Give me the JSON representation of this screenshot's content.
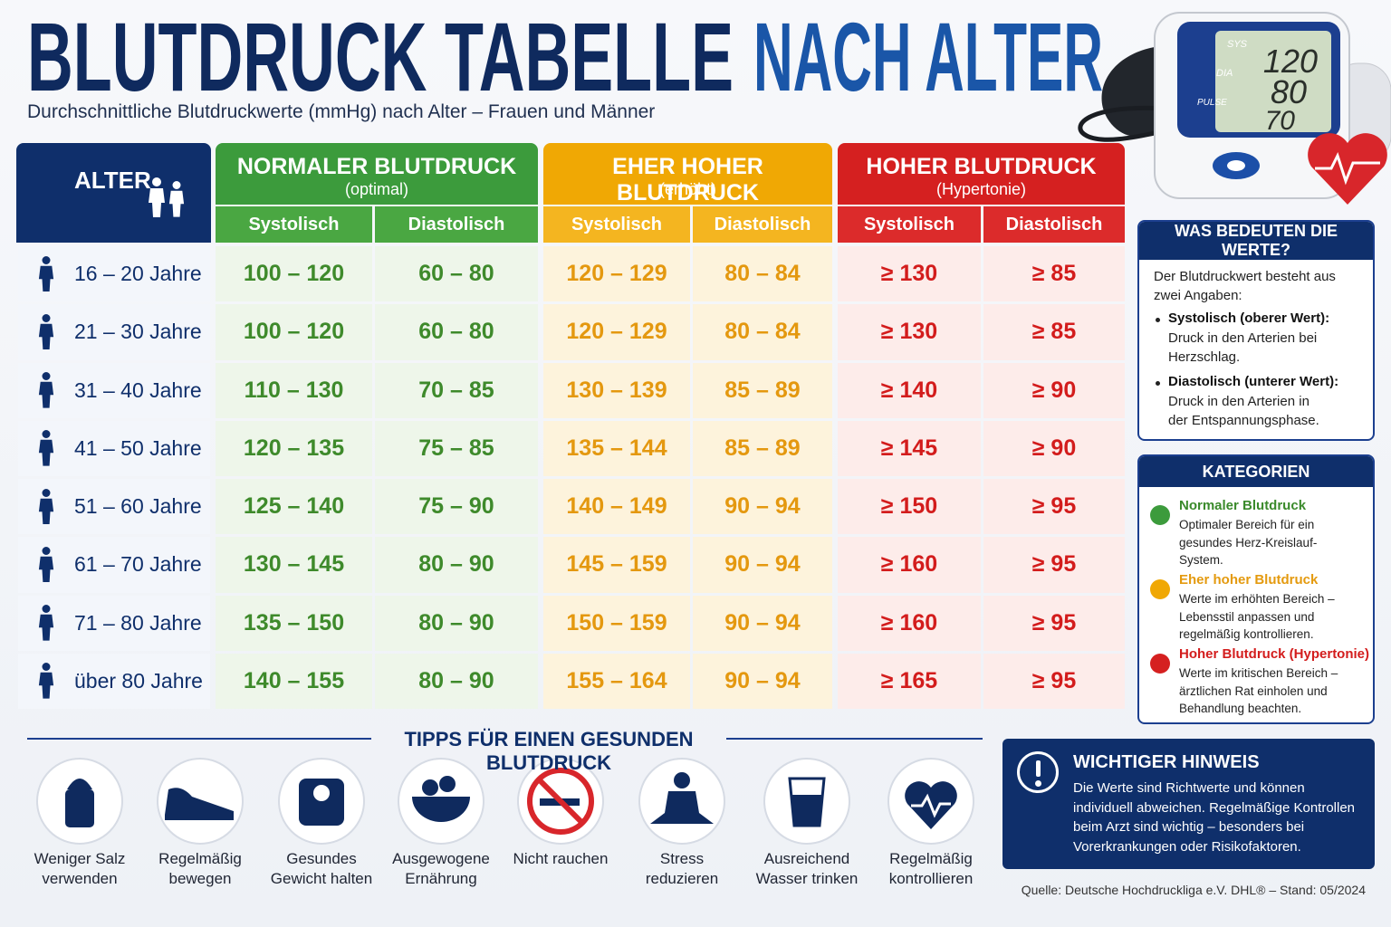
{
  "header": {
    "title": "BLUTDRUCK TABELLE",
    "title_accent": "NACH ALTER",
    "subtitle": "Durchschnittliche Blutdruckwerte (mmHg) nach Alter – Frauen und Männer"
  },
  "device": {
    "labels": [
      "SYS",
      "DIA",
      "PULSE"
    ],
    "readings": [
      "120",
      "80",
      "70"
    ]
  },
  "table": {
    "age_header": "ALTER",
    "groups": [
      {
        "title": "NORMALER BLUTDRUCK",
        "subtitle": "(optimal)",
        "columns": [
          "Systolisch",
          "Diastolisch"
        ]
      },
      {
        "title": "EHER HOHER BLUTDRUCK",
        "subtitle": "(erhöht)",
        "columns": [
          "Systolisch",
          "Diastolisch"
        ]
      },
      {
        "title": "HOHER BLUTDRUCK",
        "subtitle": "(Hypertonie)",
        "columns": [
          "Systolisch",
          "Diastolisch"
        ]
      }
    ],
    "rows": [
      {
        "age": "16 – 20 Jahre",
        "cells": [
          "100 – 120",
          "60 – 80",
          "120 – 129",
          "80 – 84",
          "≥ 130",
          "≥ 85"
        ]
      },
      {
        "age": "21 – 30 Jahre",
        "cells": [
          "100 – 120",
          "60 – 80",
          "120 – 129",
          "80 – 84",
          "≥ 130",
          "≥ 85"
        ]
      },
      {
        "age": "31 – 40 Jahre",
        "cells": [
          "110 – 130",
          "70 – 85",
          "130 – 139",
          "85 – 89",
          "≥ 140",
          "≥ 90"
        ]
      },
      {
        "age": "41 – 50 Jahre",
        "cells": [
          "120 – 135",
          "75 – 85",
          "135 – 144",
          "85 – 89",
          "≥ 145",
          "≥ 90"
        ]
      },
      {
        "age": "51 – 60 Jahre",
        "cells": [
          "125 – 140",
          "75 – 90",
          "140 – 149",
          "90 – 94",
          "≥ 150",
          "≥ 95"
        ]
      },
      {
        "age": "61 – 70 Jahre",
        "cells": [
          "130 – 145",
          "80 – 90",
          "145 – 159",
          "90 – 94",
          "≥ 160",
          "≥ 95"
        ]
      },
      {
        "age": "71 – 80 Jahre",
        "cells": [
          "135 – 150",
          "80 – 90",
          "150 – 159",
          "90 – 94",
          "≥ 160",
          "≥ 95"
        ]
      },
      {
        "age": "über 80 Jahre",
        "cells": [
          "140 – 155",
          "80 – 90",
          "155 – 164",
          "90 – 94",
          "≥ 165",
          "≥ 95"
        ]
      }
    ]
  },
  "info": {
    "title": "WAS BEDEUTEN DIE WERTE?",
    "intro": "Der Blutdruckwert besteht aus zwei Angaben:",
    "items": [
      {
        "term": "Systolisch (oberer Wert):",
        "text": "Druck in den Arterien bei Herzschlag."
      },
      {
        "term": "Diastolisch (unterer Wert):",
        "text": "Druck in den Arterien in der Entspannungsphase."
      }
    ]
  },
  "categories": {
    "title": "KATEGORIEN",
    "items": [
      {
        "name": "Normaler Blutdruck",
        "text": "Optimaler Bereich für ein gesundes Herz-Kreislauf-System."
      },
      {
        "name": "Eher hoher Blutdruck",
        "text": "Werte im erhöhten Bereich – Lebensstil anpassen und regelmäßig kontrollieren."
      },
      {
        "name": "Hoher Blutdruck (Hypertonie)",
        "text": "Werte im kritischen Bereich – ärztlichen Rat einholen und Behandlung beachten."
      }
    ]
  },
  "tips": {
    "title": "TIPPS FÜR EINEN GESUNDEN BLUTDRUCK",
    "items": [
      [
        "Weniger Salz",
        "verwenden"
      ],
      [
        "Regelmäßig",
        "bewegen"
      ],
      [
        "Gesundes",
        "Gewicht halten"
      ],
      [
        "Ausgewogene",
        "Ernährung"
      ],
      [
        "Nicht rauchen"
      ],
      [
        "Stress",
        "reduzieren"
      ],
      [
        "Ausreichend",
        "Wasser trinken"
      ],
      [
        "Regelmäßig",
        "kontrollieren"
      ]
    ]
  },
  "notice": {
    "title": "WICHTIGER HINWEIS",
    "text": "Die Werte sind Richtwerte und können individuell abweichen. Regelmäßige Kontrollen beim Arzt sind wichtig – besonders bei Vorerkrankungen oder Risikofaktoren."
  },
  "source": "Quelle: Deutsche Hochdruckliga e.V. DHL® – Stand: 05/2024"
}
